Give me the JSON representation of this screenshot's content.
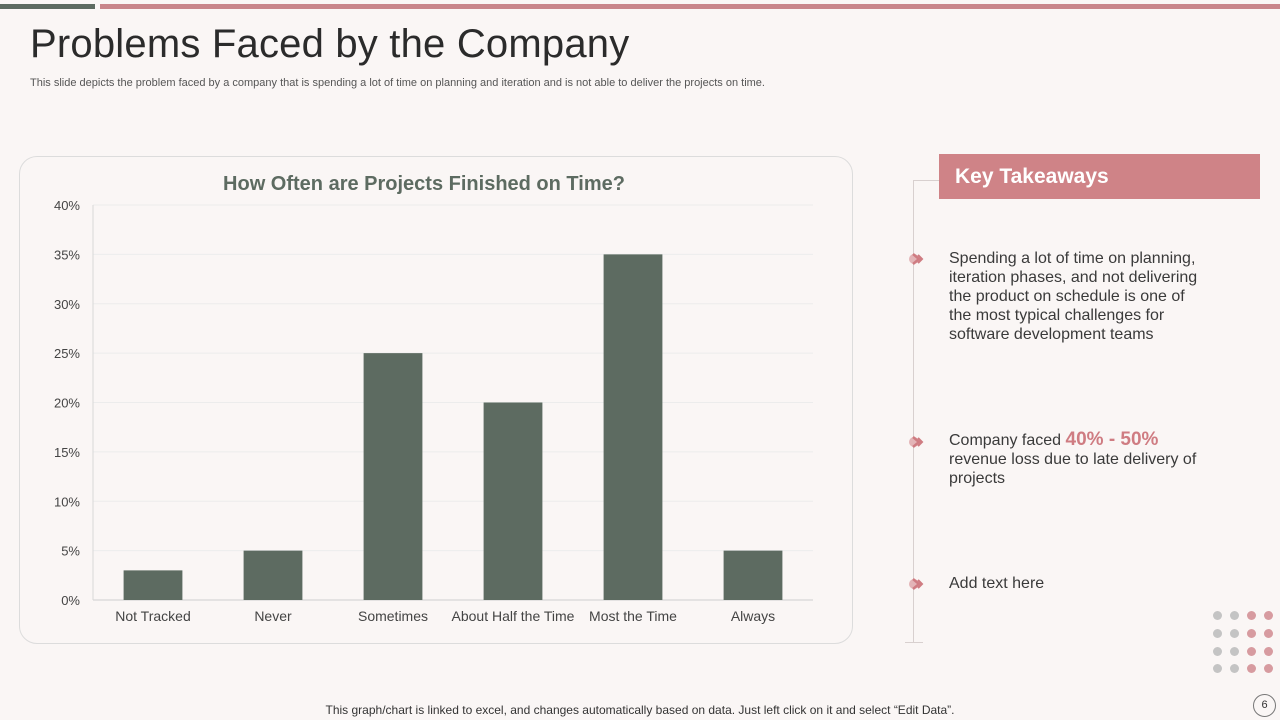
{
  "page": {
    "title": "Problems Faced by the Company",
    "subtitle": "This slide depicts the problem faced by a company that is spending a lot of time on planning and iteration and is not able to  deliver the projects on time.",
    "footer_note": "This graph/chart is linked to excel,  and changes automatically based on data. Just left click on it and select “Edit Data”.",
    "page_number": "6"
  },
  "chart_data": {
    "type": "bar",
    "title": "How Often are Projects Finished on Time?",
    "categories": [
      "Not Tracked",
      "Never",
      "Sometimes",
      "About Half the Time",
      "Most the Time",
      "Always"
    ],
    "values": [
      3,
      5,
      25,
      20,
      35,
      5
    ],
    "ylim": [
      0,
      40
    ],
    "yticks": [
      "0%",
      "5%",
      "10%",
      "15%",
      "20%",
      "25%",
      "30%",
      "35%",
      "40%"
    ],
    "xlabel": "",
    "ylabel": "",
    "bar_color": "#5d6b61",
    "grid": true
  },
  "takeaways": {
    "header": "Key Takeaways",
    "item1": "Spending a lot of time on planning, iteration phases, and not delivering the product on schedule is one of the most typical challenges for software development teams",
    "item2_prefix": "Company faced ",
    "item2_highlight": "40% - 50%",
    "item2_suffix": " revenue loss due to late delivery of projects",
    "item3": "Add text here"
  },
  "colors": {
    "accent": "#cf8387",
    "bar": "#5d6b61"
  }
}
